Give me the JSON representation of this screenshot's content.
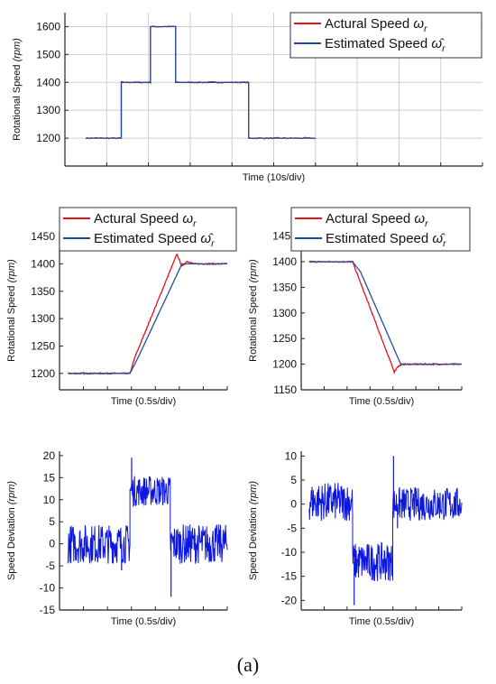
{
  "caption": "(a)",
  "colors": {
    "actual": "#e8101c",
    "estimated": "#1f4f9c",
    "deviation": "#0b16e0",
    "grid": "#cfcfcf",
    "axis": "#222222"
  },
  "chart_data": [
    {
      "id": "overview",
      "type": "line",
      "xlabel": "Time (10s/div)",
      "ylabel_main": "Rotational Speed ",
      "ylabel_unit": "(rpm)",
      "ylim": [
        1100,
        1650
      ],
      "yticks": [
        "1200",
        "1300",
        "1400",
        "1500",
        "1600"
      ],
      "xlim": [
        0,
        100
      ],
      "xdivs": 10,
      "grid": true,
      "legend_placement": "top-right",
      "series": [
        {
          "name": "Actural Speed ωr",
          "role": "actual",
          "x": [
            5,
            13.5,
            13.5,
            20.5,
            20.5,
            26.5,
            26.5,
            44,
            44,
            60,
            60
          ],
          "y": [
            1200,
            1200,
            1400,
            1400,
            1600,
            1600,
            1400,
            1400,
            1200,
            1200,
            1200
          ]
        },
        {
          "name": "Estimated Speed ω̂r",
          "role": "estimated",
          "x": [
            5,
            13.5,
            13.5,
            20.5,
            20.5,
            26.5,
            26.5,
            44,
            44,
            60,
            60
          ],
          "y": [
            1200,
            1200,
            1400,
            1400,
            1600,
            1600,
            1400,
            1400,
            1200,
            1200,
            1200
          ]
        }
      ],
      "legend": [
        {
          "label": "Actural Speed ",
          "sym": "ω",
          "sub": "r",
          "role": "actual"
        },
        {
          "label": "Estimated Speed ",
          "sym": "ω̂",
          "sub": "r",
          "role": "estimated"
        }
      ]
    },
    {
      "id": "step-up",
      "type": "line",
      "xlabel": "Time (0.5s/div)",
      "ylabel_main": "Rotational Speed ",
      "ylabel_unit": "(rpm)",
      "ylim": [
        1170,
        1460
      ],
      "yticks": [
        "1200",
        "1250",
        "1300",
        "1350",
        "1400",
        "1450"
      ],
      "xlim": [
        0,
        100
      ],
      "xdivs": 7,
      "grid": false,
      "legend_placement": "top",
      "series": [
        {
          "name": "Actural Speed ωr",
          "role": "actual",
          "x": [
            5,
            42,
            45,
            70,
            73,
            76,
            80,
            100
          ],
          "y": [
            1200,
            1200,
            1230,
            1418,
            1395,
            1405,
            1400,
            1400
          ]
        },
        {
          "name": "Estimated Speed ω̂r",
          "role": "estimated",
          "x": [
            5,
            42,
            47,
            73,
            100
          ],
          "y": [
            1200,
            1200,
            1230,
            1400,
            1400
          ]
        }
      ],
      "legend": [
        {
          "label": "Actural Speed ",
          "sym": "ω",
          "sub": "r",
          "role": "actual"
        },
        {
          "label": "Estimated Speed ",
          "sym": "ω̂",
          "sub": "r",
          "role": "estimated"
        }
      ]
    },
    {
      "id": "step-down",
      "type": "line",
      "xlabel": "Time (0.5s/div)",
      "ylabel_main": "Rotational Speed ",
      "ylabel_unit": "(rpm)",
      "ylim": [
        1150,
        1460
      ],
      "yticks": [
        "1150",
        "1200",
        "1250",
        "1300",
        "1350",
        "1400",
        "1450"
      ],
      "xlim": [
        0,
        100
      ],
      "xdivs": 7,
      "grid": false,
      "legend_placement": "top",
      "series": [
        {
          "name": "Actural Speed ωr",
          "role": "actual",
          "x": [
            5,
            32,
            35,
            58,
            60,
            63,
            67,
            100
          ],
          "y": [
            1400,
            1400,
            1375,
            1185,
            1195,
            1200,
            1200,
            1200
          ]
        },
        {
          "name": "Estimated Speed ω̂r",
          "role": "estimated",
          "x": [
            5,
            32,
            37,
            62,
            100
          ],
          "y": [
            1400,
            1400,
            1380,
            1200,
            1200
          ]
        }
      ],
      "legend": [
        {
          "label": "Actural Speed ",
          "sym": "ω",
          "sub": "r",
          "role": "actual"
        },
        {
          "label": "Estimated Speed ",
          "sym": "ω̂",
          "sub": "r",
          "role": "estimated"
        }
      ]
    },
    {
      "id": "deviation-up",
      "type": "line",
      "xlabel": "Time (0.5s/div)",
      "ylabel_main": "Speed Deviation ",
      "ylabel_unit": "(rpm)",
      "ylim": [
        -15,
        21
      ],
      "yticks": [
        "-15",
        "-10",
        "-5",
        "0",
        "5",
        "10",
        "15",
        "20"
      ],
      "xlim": [
        0,
        100
      ],
      "xdivs": 7,
      "grid": false,
      "series": [
        {
          "name": "Speed Deviation",
          "role": "deviation",
          "segments": [
            {
              "x0": 5,
              "x1": 42,
              "mean": 0,
              "amp": 4.5
            },
            {
              "x0": 42,
              "x1": 66,
              "mean": 12,
              "amp": 3.5
            },
            {
              "x0": 66,
              "x1": 100,
              "mean": 0,
              "amp": 4.5
            }
          ],
          "spikes": [
            {
              "x": 43,
              "y": 19.5
            },
            {
              "x": 66.5,
              "y": -12
            },
            {
              "x": 37,
              "y": -6
            }
          ]
        }
      ]
    },
    {
      "id": "deviation-down",
      "type": "line",
      "xlabel": "Time (0.5s/div)",
      "ylabel_main": "Speed Deviation ",
      "ylabel_unit": "(rpm)",
      "ylim": [
        -22,
        11
      ],
      "yticks": [
        "-20",
        "-15",
        "-10",
        "-5",
        "0",
        "5",
        "10"
      ],
      "xlim": [
        0,
        100
      ],
      "xdivs": 7,
      "grid": false,
      "series": [
        {
          "name": "Speed Deviation",
          "role": "deviation",
          "segments": [
            {
              "x0": 5,
              "x1": 32,
              "mean": 0.5,
              "amp": 4
            },
            {
              "x0": 32,
              "x1": 57,
              "mean": -12,
              "amp": 4
            },
            {
              "x0": 57,
              "x1": 100,
              "mean": 0,
              "amp": 3.5
            }
          ],
          "spikes": [
            {
              "x": 33,
              "y": -21
            },
            {
              "x": 57.5,
              "y": 10
            },
            {
              "x": 60,
              "y": -5
            }
          ]
        }
      ]
    }
  ]
}
